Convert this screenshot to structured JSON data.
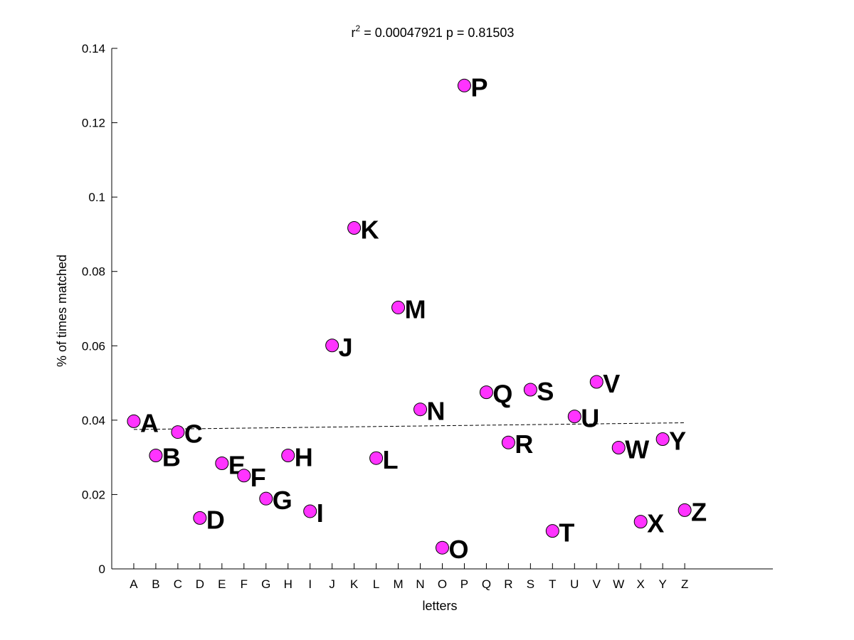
{
  "chart_data": {
    "type": "scatter",
    "title": {
      "prefix": "r",
      "superscript": "2",
      "rest": " = 0.00047921 p = 0.81503"
    },
    "xlabel": "letters",
    "ylabel": "% of times matched",
    "categories": [
      "A",
      "B",
      "C",
      "D",
      "E",
      "F",
      "G",
      "H",
      "I",
      "J",
      "K",
      "L",
      "M",
      "N",
      "O",
      "P",
      "Q",
      "R",
      "S",
      "T",
      "U",
      "V",
      "W",
      "X",
      "Y",
      "Z"
    ],
    "values": [
      0.0397,
      0.0305,
      0.0368,
      0.0137,
      0.0284,
      0.0251,
      0.0189,
      0.0305,
      0.0155,
      0.0601,
      0.0917,
      0.0298,
      0.0703,
      0.0429,
      0.0057,
      0.13,
      0.0475,
      0.034,
      0.0482,
      0.0102,
      0.041,
      0.0503,
      0.0326,
      0.0127,
      0.0349,
      0.0158
    ],
    "ylim": [
      0,
      0.14
    ],
    "yticks": [
      "0",
      "0.02",
      "0.04",
      "0.06",
      "0.08",
      "0.1",
      "0.12",
      "0.14"
    ],
    "yticks_values": [
      0,
      0.02,
      0.04,
      0.06,
      0.08,
      0.1,
      0.12,
      0.14
    ],
    "xlim": [
      0,
      30
    ],
    "fit_line": {
      "style": "dashed",
      "y_start": 0.0375,
      "y_end": 0.0393
    },
    "point_style": {
      "fill": "#ff33ff",
      "stroke": "#000000"
    },
    "grid": false
  }
}
